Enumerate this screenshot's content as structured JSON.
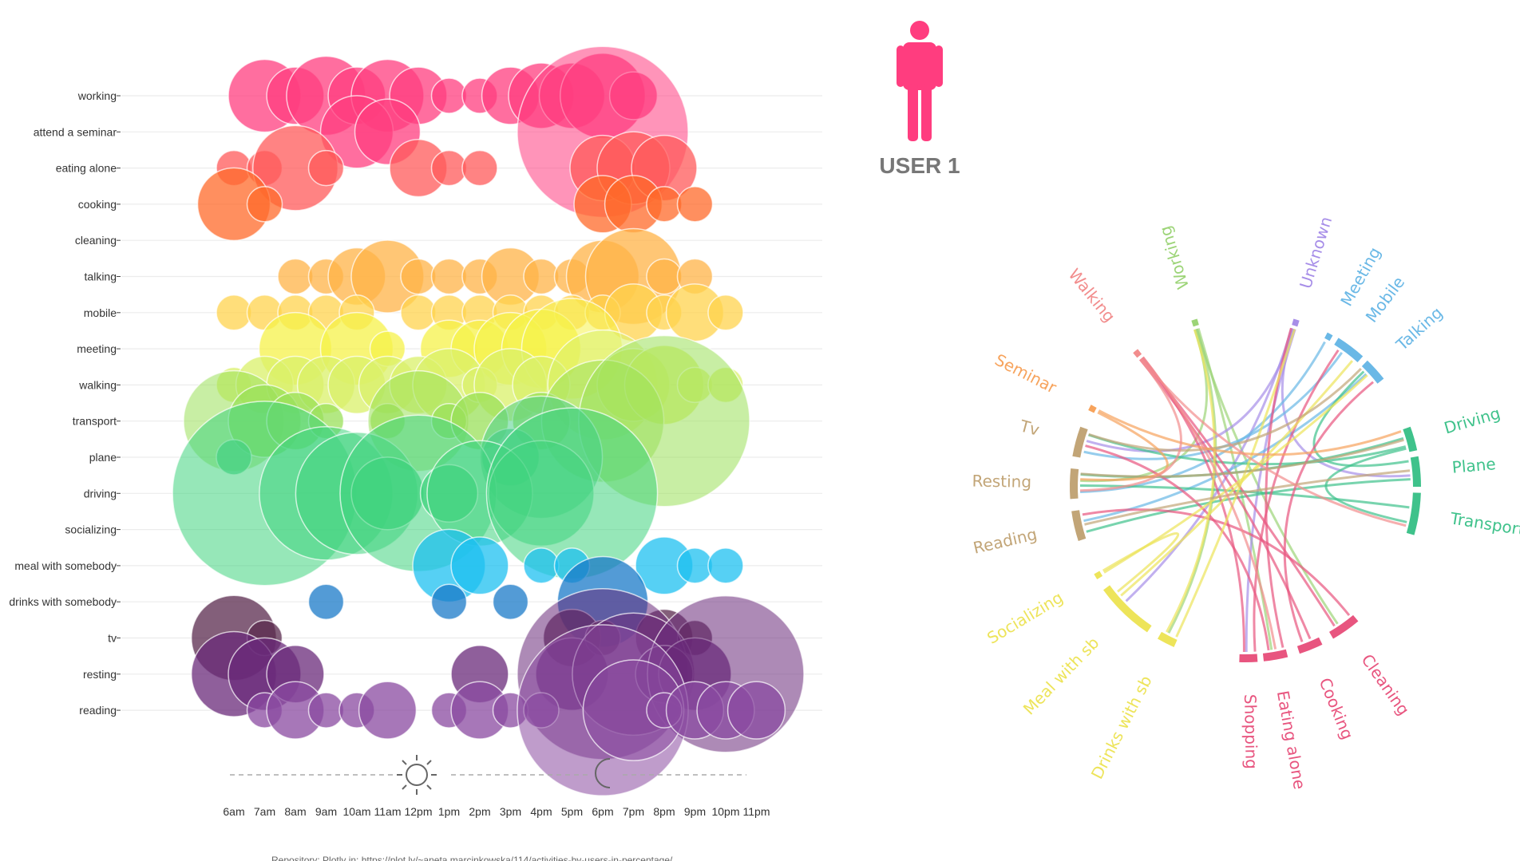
{
  "user_label": "USER 1",
  "footer": "Repository: Plotly in: https://plot.ly/~aneta.marcinkowska/114/activities-by-users-in-percentage/",
  "icons": {
    "person": "person-icon",
    "sun": "sun-icon",
    "moon": "moon-icon"
  },
  "chart_data": [
    {
      "type": "scatter",
      "title": "",
      "xlabel": "",
      "ylabel": "",
      "categories": [
        "6am",
        "7am",
        "8am",
        "9am",
        "10am",
        "11am",
        "12pm",
        "1pm",
        "2pm",
        "3pm",
        "4pm",
        "5pm",
        "6pm",
        "7pm",
        "8pm",
        "9pm",
        "10pm",
        "11pm"
      ],
      "rows": [
        {
          "name": "working",
          "color": "#ff3d7f",
          "points": [
            [
              1,
              5
            ],
            [
              2,
              3
            ],
            [
              3,
              6
            ],
            [
              4,
              3
            ],
            [
              5,
              5
            ],
            [
              6,
              3
            ],
            [
              7,
              1
            ],
            [
              8,
              1
            ],
            [
              9,
              3
            ],
            [
              10,
              4
            ],
            [
              11,
              4
            ],
            [
              12,
              7
            ],
            [
              13,
              2
            ]
          ]
        },
        {
          "name": "attend a seminar",
          "color": "#ff3d7f",
          "points": [
            [
              4,
              5
            ],
            [
              5,
              4
            ],
            [
              12,
              30
            ]
          ]
        },
        {
          "name": "eating alone",
          "color": "#ff5a5a",
          "points": [
            [
              0,
              1
            ],
            [
              1,
              1
            ],
            [
              2,
              7
            ],
            [
              3,
              1
            ],
            [
              6,
              3
            ],
            [
              7,
              1
            ],
            [
              8,
              1
            ],
            [
              12,
              4
            ],
            [
              13,
              5
            ],
            [
              14,
              4
            ]
          ]
        },
        {
          "name": "cooking",
          "color": "#ff6a2a",
          "points": [
            [
              0,
              5
            ],
            [
              1,
              1
            ],
            [
              12,
              3
            ],
            [
              13,
              3
            ],
            [
              14,
              1
            ],
            [
              15,
              1
            ]
          ]
        },
        {
          "name": "cleaning",
          "color": "#ff8a3a",
          "points": []
        },
        {
          "name": "talking",
          "color": "#ffb347",
          "points": [
            [
              2,
              1
            ],
            [
              3,
              1
            ],
            [
              4,
              3
            ],
            [
              5,
              5
            ],
            [
              6,
              1
            ],
            [
              7,
              1
            ],
            [
              8,
              1
            ],
            [
              9,
              3
            ],
            [
              10,
              1
            ],
            [
              11,
              1
            ],
            [
              12,
              5
            ],
            [
              13,
              9
            ],
            [
              14,
              1
            ],
            [
              15,
              1
            ]
          ]
        },
        {
          "name": "mobile",
          "color": "#ffd34d",
          "points": [
            [
              0,
              1
            ],
            [
              1,
              1
            ],
            [
              2,
              1
            ],
            [
              3,
              1
            ],
            [
              4,
              1
            ],
            [
              6,
              1
            ],
            [
              7,
              1
            ],
            [
              8,
              1
            ],
            [
              9,
              1
            ],
            [
              10,
              1
            ],
            [
              11,
              1
            ],
            [
              12,
              1
            ],
            [
              13,
              3
            ],
            [
              14,
              1
            ],
            [
              15,
              3
            ],
            [
              16,
              1
            ]
          ]
        },
        {
          "name": "meeting",
          "color": "#f6f24a",
          "points": [
            [
              2,
              5
            ],
            [
              4,
              5
            ],
            [
              5,
              1
            ],
            [
              7,
              3
            ],
            [
              8,
              3
            ],
            [
              9,
              5
            ],
            [
              10,
              6
            ],
            [
              11,
              10
            ]
          ]
        },
        {
          "name": "walking",
          "color": "#d9f06a",
          "points": [
            [
              0,
              1
            ],
            [
              1,
              3
            ],
            [
              2,
              3
            ],
            [
              3,
              3
            ],
            [
              4,
              3
            ],
            [
              5,
              3
            ],
            [
              6,
              3
            ],
            [
              7,
              5
            ],
            [
              8,
              1
            ],
            [
              9,
              5
            ],
            [
              10,
              3
            ],
            [
              12,
              12
            ],
            [
              13,
              5
            ],
            [
              14,
              6
            ],
            [
              15,
              1
            ],
            [
              16,
              1
            ]
          ]
        },
        {
          "name": "transport",
          "color": "#9ae05a",
          "points": [
            [
              0,
              10
            ],
            [
              1,
              5
            ],
            [
              2,
              3
            ],
            [
              3,
              1
            ],
            [
              5,
              1
            ],
            [
              6,
              10
            ],
            [
              7,
              1
            ],
            [
              8,
              3
            ],
            [
              10,
              3
            ],
            [
              12,
              15
            ],
            [
              14,
              30
            ]
          ]
        },
        {
          "name": "plane",
          "color": "#4fd08a",
          "points": [
            [
              0,
              1
            ],
            [
              9,
              3
            ],
            [
              10,
              15
            ]
          ]
        },
        {
          "name": "driving",
          "color": "#3fd37e",
          "points": [
            [
              1,
              35
            ],
            [
              3,
              18
            ],
            [
              4,
              15
            ],
            [
              5,
              5
            ],
            [
              6,
              25
            ],
            [
              7,
              3
            ],
            [
              8,
              11
            ],
            [
              10,
              11
            ],
            [
              11,
              30
            ]
          ]
        },
        {
          "name": "socializing",
          "color": "#3fd37e",
          "points": []
        },
        {
          "name": "meal with somebody",
          "color": "#1ec0f0",
          "points": [
            [
              7,
              5
            ],
            [
              8,
              3
            ],
            [
              10,
              1
            ],
            [
              11,
              1
            ],
            [
              14,
              3
            ],
            [
              15,
              1
            ],
            [
              16,
              1
            ]
          ]
        },
        {
          "name": "drinks with somebody",
          "color": "#1a7ac8",
          "points": [
            [
              3,
              1
            ],
            [
              7,
              1
            ],
            [
              9,
              1
            ],
            [
              12,
              8
            ]
          ]
        },
        {
          "name": "tv",
          "color": "#5a2a4e",
          "points": [
            [
              0,
              7
            ],
            [
              1,
              1
            ],
            [
              11,
              3
            ],
            [
              12,
              1
            ],
            [
              14,
              3
            ],
            [
              15,
              1
            ]
          ]
        },
        {
          "name": "resting",
          "color": "#6a2a7a",
          "points": [
            [
              0,
              7
            ],
            [
              1,
              5
            ],
            [
              2,
              3
            ],
            [
              8,
              3
            ],
            [
              11,
              5
            ],
            [
              12,
              30
            ],
            [
              13,
              15
            ],
            [
              14,
              3
            ],
            [
              15,
              5
            ],
            [
              16,
              25
            ]
          ]
        },
        {
          "name": "reading",
          "color": "#8a4aa0",
          "points": [
            [
              1,
              1
            ],
            [
              2,
              3
            ],
            [
              3,
              1
            ],
            [
              4,
              1
            ],
            [
              5,
              3
            ],
            [
              7,
              1
            ],
            [
              8,
              3
            ],
            [
              9,
              1
            ],
            [
              10,
              1
            ],
            [
              12,
              30
            ],
            [
              13,
              10
            ],
            [
              14,
              1
            ],
            [
              15,
              3
            ],
            [
              16,
              3
            ],
            [
              17,
              3
            ]
          ]
        }
      ]
    },
    {
      "type": "chord",
      "groups": [
        {
          "label": "Working",
          "color": "#9cd477"
        },
        {
          "label": "Unknown",
          "color": "#a78ee8"
        },
        {
          "label": "Meeting",
          "color": "#6ab8e6"
        },
        {
          "label": "Mobile",
          "color": "#6ab8e6"
        },
        {
          "label": "Talking",
          "color": "#6ab8e6"
        },
        {
          "label": "Driving",
          "color": "#3fc28b"
        },
        {
          "label": "Plane",
          "color": "#3fc28b"
        },
        {
          "label": "Transport",
          "color": "#3fc28b"
        },
        {
          "label": "Cleaning",
          "color": "#e8557f"
        },
        {
          "label": "Cooking",
          "color": "#e8557f"
        },
        {
          "label": "Eating alone",
          "color": "#e8557f"
        },
        {
          "label": "Shopping",
          "color": "#e8557f"
        },
        {
          "label": "Drinks with sb",
          "color": "#ede45a"
        },
        {
          "label": "Meal with sb",
          "color": "#ede45a"
        },
        {
          "label": "Socializing",
          "color": "#ede45a"
        },
        {
          "label": "Reading",
          "color": "#c2a577"
        },
        {
          "label": "Resting",
          "color": "#c2a577"
        },
        {
          "label": "Tv",
          "color": "#c2a577"
        },
        {
          "label": "Seminar",
          "color": "#f7a35c"
        },
        {
          "label": "Walking",
          "color": "#f28d8d"
        }
      ]
    }
  ]
}
